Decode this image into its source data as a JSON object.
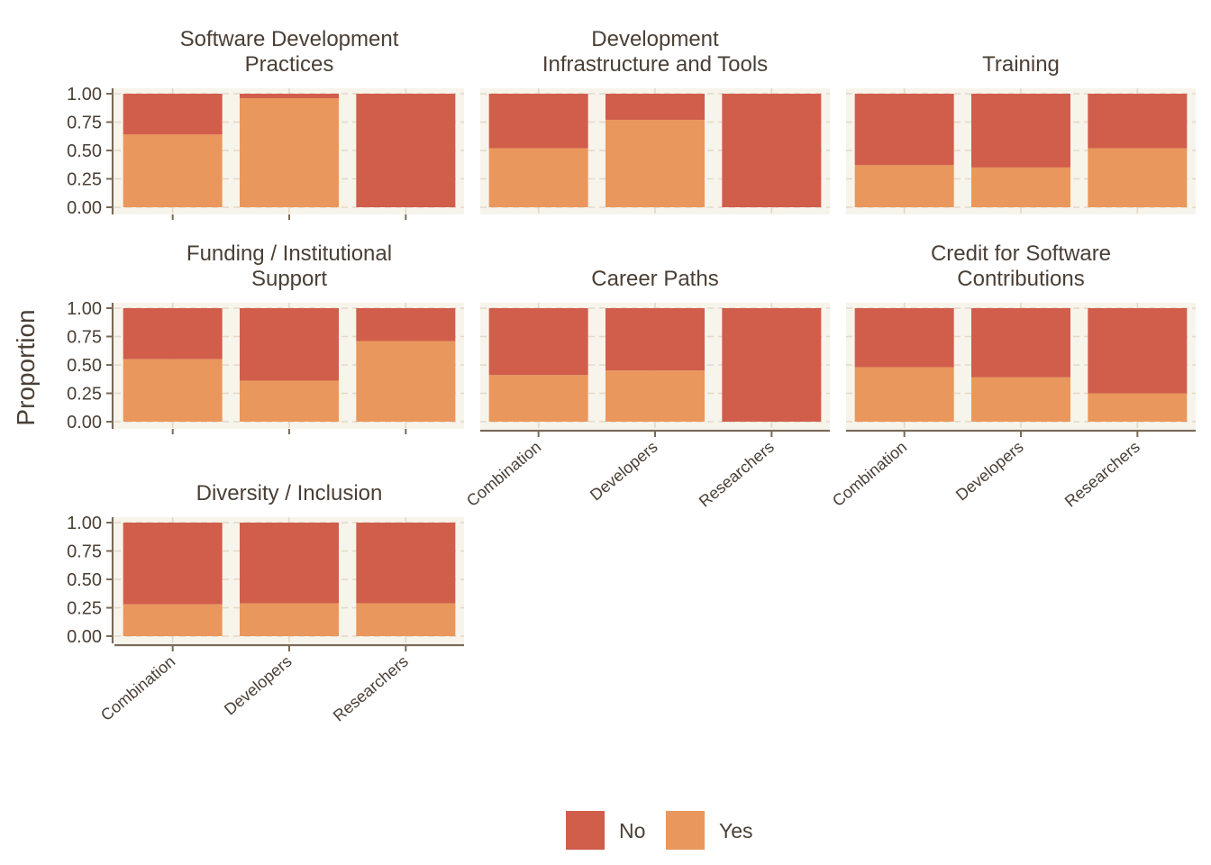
{
  "chart_data": {
    "type": "bar",
    "stacked": true,
    "ylabel": "Proportion",
    "xlabel": "",
    "ylim": [
      0,
      1
    ],
    "yticks": [
      "0.00",
      "0.25",
      "0.50",
      "0.75",
      "1.00"
    ],
    "categories": [
      "Combination",
      "Developers",
      "Researchers"
    ],
    "legend": {
      "position": "bottom",
      "items": [
        {
          "name": "No",
          "color": "#d05e4b"
        },
        {
          "name": "Yes",
          "color": "#e9975c"
        }
      ]
    },
    "colors": {
      "panel_bg": "#f7f4ec",
      "grid": "#e3d8c6",
      "axis": "#7a6a58",
      "text": "#4a3f35"
    },
    "facets": [
      {
        "title": [
          "Software Development",
          "Practices"
        ],
        "yes": [
          0.64,
          0.96,
          0.0
        ]
      },
      {
        "title": [
          "Development",
          "Infrastructure and Tools"
        ],
        "yes": [
          0.52,
          0.77,
          0.0
        ]
      },
      {
        "title": [
          "Training"
        ],
        "yes": [
          0.37,
          0.35,
          0.52
        ]
      },
      {
        "title": [
          "Funding / Institutional",
          "Support"
        ],
        "yes": [
          0.55,
          0.36,
          0.71
        ]
      },
      {
        "title": [
          "Career Paths"
        ],
        "yes": [
          0.41,
          0.45,
          0.0
        ]
      },
      {
        "title": [
          "Credit for Software",
          "Contributions"
        ],
        "yes": [
          0.48,
          0.39,
          0.25
        ]
      },
      {
        "title": [
          "Diversity / Inclusion"
        ],
        "yes": [
          0.28,
          0.29,
          0.29
        ]
      }
    ]
  }
}
